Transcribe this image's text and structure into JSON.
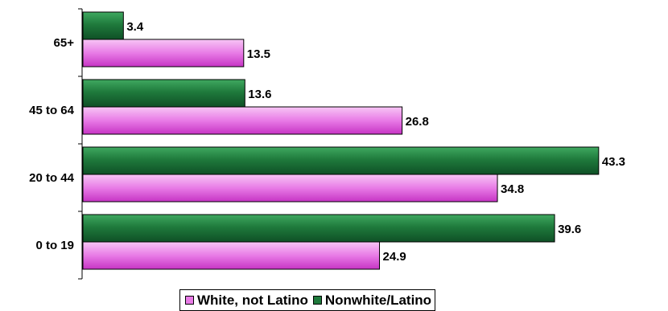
{
  "chart_data": {
    "type": "bar",
    "orientation": "horizontal",
    "categories": [
      "65+",
      "45 to 64",
      "20 to 44",
      "0 to 19"
    ],
    "series": [
      {
        "name": "Nonwhite/Latino",
        "values": [
          3.4,
          13.6,
          43.3,
          39.6
        ],
        "color": "#1f7a3c"
      },
      {
        "name": "White, not Latino",
        "values": [
          13.5,
          26.8,
          34.8,
          24.9
        ],
        "color": "#e14fe0"
      }
    ],
    "value_labels": true,
    "xlim": [
      0,
      50
    ],
    "grid": false,
    "legend_position": "bottom"
  },
  "legend": {
    "items": [
      {
        "label": "White, not Latino",
        "color": "#e14fe0"
      },
      {
        "label": "Nonwhite/Latino",
        "color": "#1f7a3c"
      }
    ]
  }
}
